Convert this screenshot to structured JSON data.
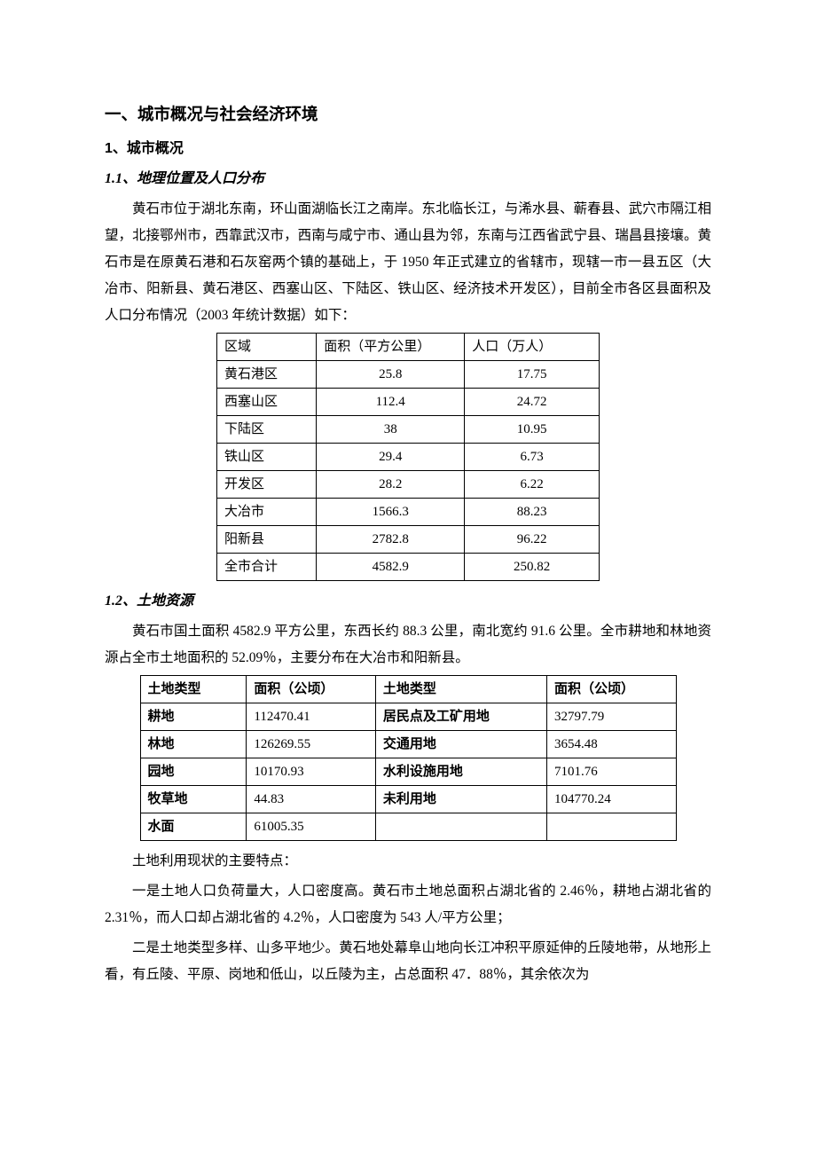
{
  "h1": "一、城市概况与社会经济环境",
  "s1": {
    "h2": "1、城市概况",
    "s11": {
      "h3": "1.1、地理位置及人口分布",
      "p1": "黄石市位于湖北东南，环山面湖临长江之南岸。东北临长江，与浠水县、蕲春县、武穴市隔江相望，北接鄂州市，西靠武汉市，西南与咸宁市、通山县为邻，东南与江西省武宁县、瑞昌县接壤。黄石市是在原黄石港和石灰窑两个镇的基础上，于 1950 年正式建立的省辖市，现辖一市一县五区（大冶市、阳新县、黄石港区、西塞山区、下陆区、铁山区、经济技术开发区），目前全市各区县面积及人口分布情况（2003 年统计数据）如下：",
      "table": {
        "headers": [
          "区域",
          "面积（平方公里）",
          "人口（万人）"
        ],
        "rows": [
          [
            "黄石港区",
            "25.8",
            "17.75"
          ],
          [
            "西塞山区",
            "112.4",
            "24.72"
          ],
          [
            "下陆区",
            "38",
            "10.95"
          ],
          [
            "铁山区",
            "29.4",
            "6.73"
          ],
          [
            "开发区",
            "28.2",
            "6.22"
          ],
          [
            "大冶市",
            "1566.3",
            "88.23"
          ],
          [
            "阳新县",
            "2782.8",
            "96.22"
          ],
          [
            "全市合计",
            "4582.9",
            "250.82"
          ]
        ]
      }
    },
    "s12": {
      "h3": "1.2、土地资源",
      "p1": "黄石市国土面积 4582.9 平方公里，东西长约 88.3 公里，南北宽约 91.6 公里。全市耕地和林地资源占全市土地面积的 52.09％，主要分布在大冶市和阳新县。",
      "table": {
        "headers": [
          "土地类型",
          "面积（公顷）",
          "土地类型",
          "面积（公顷）"
        ],
        "rows": [
          [
            "耕地",
            "112470.41",
            "居民点及工矿用地",
            "32797.79"
          ],
          [
            "林地",
            "126269.55",
            "交通用地",
            "3654.48"
          ],
          [
            "园地",
            "10170.93",
            "水利设施用地",
            "7101.76"
          ],
          [
            "牧草地",
            "44.83",
            "未利用地",
            "104770.24"
          ],
          [
            "水面",
            "61005.35",
            "",
            ""
          ]
        ]
      },
      "p2": "土地利用现状的主要特点：",
      "p3": "一是土地人口负荷量大，人口密度高。黄石市土地总面积占湖北省的 2.46％，耕地占湖北省的 2.31％，而人口却占湖北省的 4.2％，人口密度为 543 人/平方公里；",
      "p4": "二是土地类型多样、山多平地少。黄石地处幕阜山地向长江冲积平原延伸的丘陵地带，从地形上看，有丘陵、平原、岗地和低山，以丘陵为主，占总面积 47．88％，其余依次为"
    }
  }
}
